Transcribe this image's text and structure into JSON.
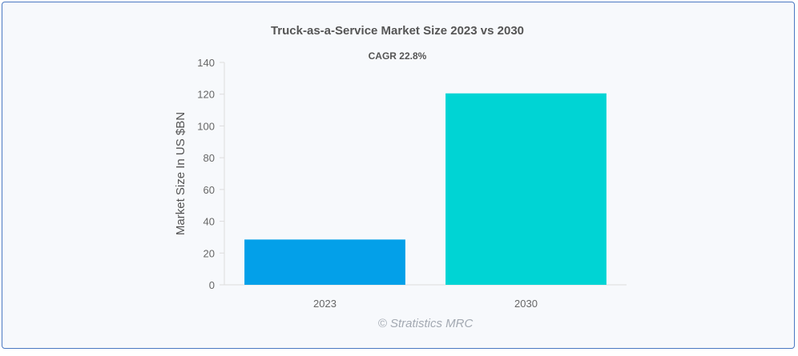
{
  "chart_data": {
    "type": "bar",
    "title": "Truck-as-a-Service Market Size 2023 vs 2030",
    "subtitle": "CAGR 22.8%",
    "categories": [
      "2023",
      "2030"
    ],
    "values": [
      28.5,
      120.5
    ],
    "xlabel": "",
    "ylabel": "Market Size In US $BN",
    "ylim": [
      0,
      140
    ],
    "yticks": [
      0,
      20,
      40,
      60,
      80,
      100,
      120,
      140
    ],
    "grid": false,
    "legend": "none",
    "bar_colors": [
      "#03a0e9",
      "#00d4d4"
    ]
  },
  "watermark": "© Stratistics MRC"
}
